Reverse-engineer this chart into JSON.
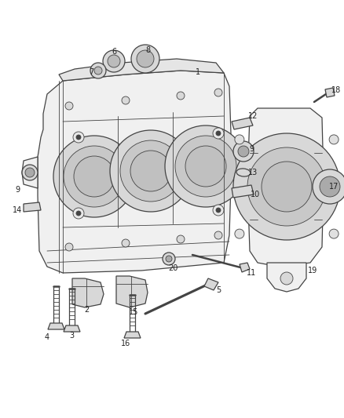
{
  "bg_color": "#ffffff",
  "line_color": "#444444",
  "fill_light": "#f0f0f0",
  "fill_mid": "#d8d8d8",
  "fill_dark": "#c0c0c0",
  "label_color": "#222222",
  "label_fs": 7.0,
  "fig_width": 4.38,
  "fig_height": 5.33,
  "dpi": 100
}
